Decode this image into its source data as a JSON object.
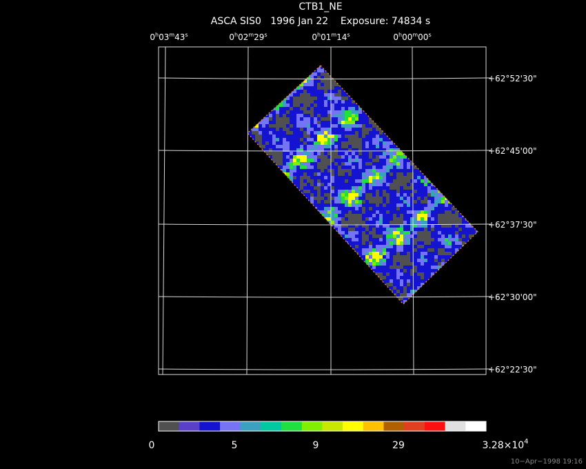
{
  "header": {
    "title": "CTB1_NE",
    "subtitle": "ASCA SIS0   1996 Jan 22    Exposure: 74834 s"
  },
  "ra_labels": [
    [
      "0",
      "h",
      "03",
      "m",
      "43",
      "s"
    ],
    [
      "0",
      "h",
      "02",
      "m",
      "29",
      "s"
    ],
    [
      "0",
      "h",
      "01",
      "m",
      "14",
      "s"
    ],
    [
      "0",
      "h",
      "00",
      "m",
      "00",
      "s"
    ]
  ],
  "dec_labels": [
    "+62°52'30\"",
    "+62°45'00\"",
    "+62°37'30\"",
    "+62°30'00\"",
    "+62°22'30\""
  ],
  "colorbar": {
    "labels": [
      "0",
      "5",
      "9",
      "29"
    ],
    "max_label": {
      "mantissa": "3.28×10",
      "exponent": "4"
    }
  },
  "footer": "10−Apr−1998 19:16"
}
